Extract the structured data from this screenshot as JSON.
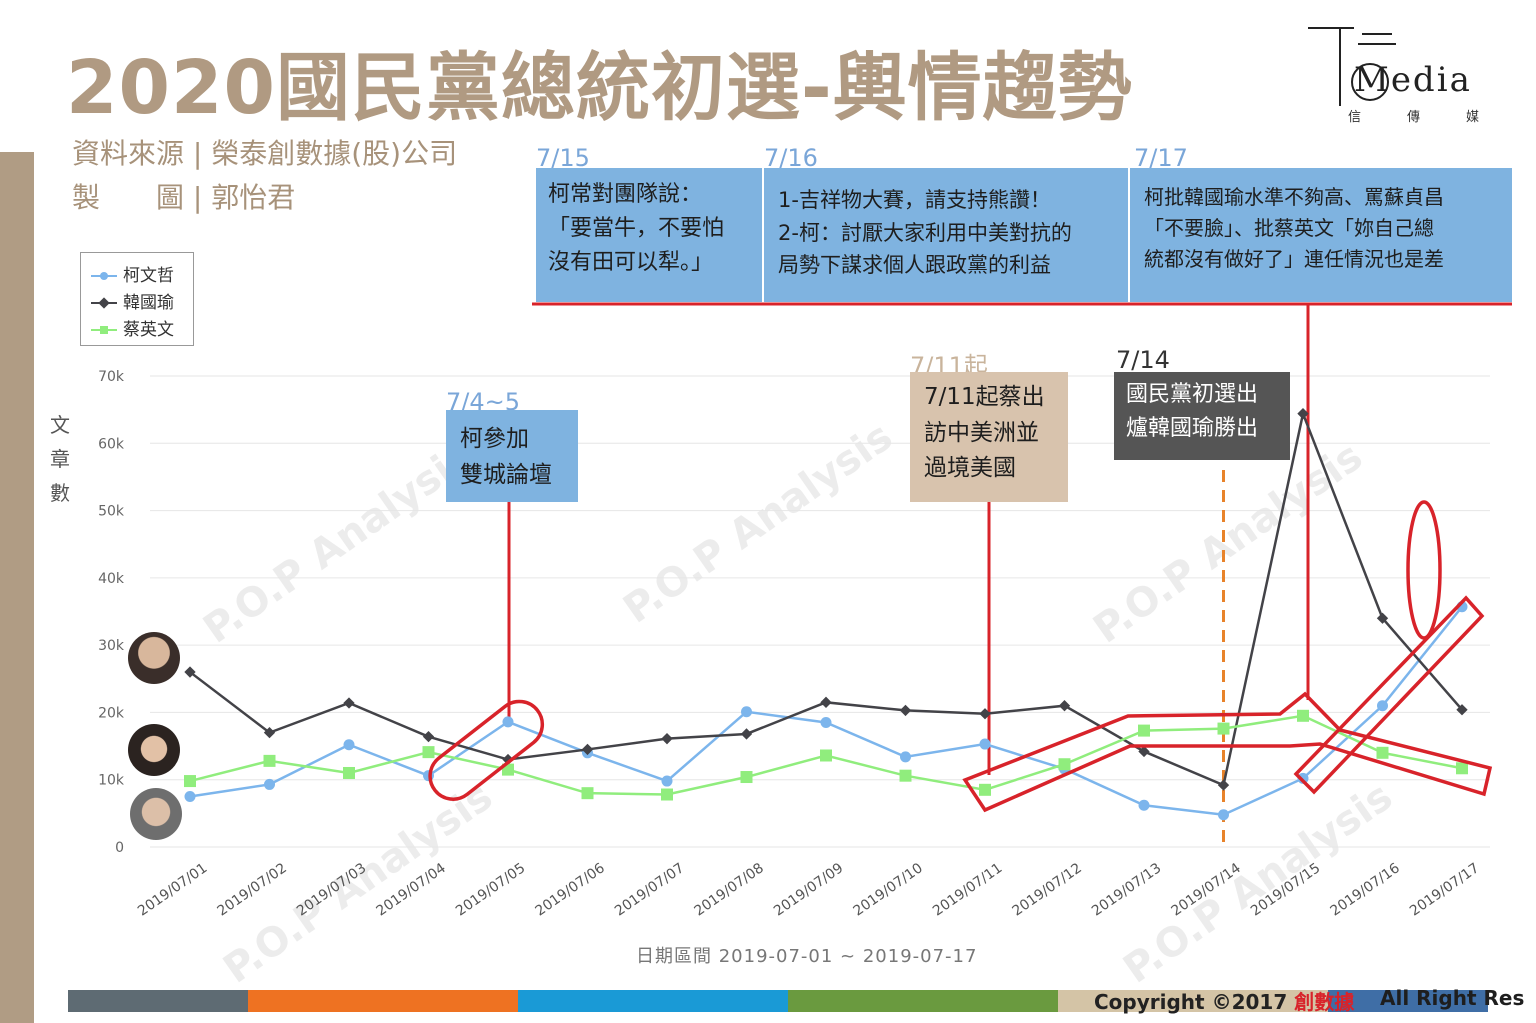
{
  "header": {
    "title": "2020國民黨總統初選-輿情趨勢",
    "source": "資料來源 | 榮泰創數據(股)公司",
    "author": "製　　圖 | 郭怡君"
  },
  "logo": {
    "brand": "Media",
    "sub": "信傳媒"
  },
  "watermark": "P.O.P Analysis",
  "annotations": {
    "d715": {
      "date": "7/15",
      "lines": [
        "柯常對團隊說：",
        "「要當牛，不要怕",
        "沒有田可以犁。」"
      ]
    },
    "d716": {
      "date": "7/16",
      "lines": [
        "1-吉祥物大賽，請支持熊讚！",
        "2-柯：討厭大家利用中美對抗的",
        "局勢下謀求個人跟政黨的利益"
      ]
    },
    "d717": {
      "date": "7/17",
      "lines": [
        "柯批韓國瑜水準不夠高、罵蘇貞昌",
        "「不要臉」、批蔡英文「妳自己總",
        "統都沒有做好了」連任情況也是差"
      ]
    },
    "d74": {
      "date": "7/4~5",
      "lines": [
        "柯參加",
        "雙城論壇"
      ]
    },
    "d711": {
      "date": "7/11起",
      "lines": [
        "7/11起蔡出",
        "訪中美洲並",
        "過境美國"
      ]
    },
    "d714": {
      "date": "7/14",
      "lines": [
        "國民黨初選出",
        "爐韓國瑜勝出"
      ]
    }
  },
  "footer": {
    "copyright": "Copyright ©2017 ",
    "copyright_brand": "創數據",
    "rights": "All Right Res",
    "colors": [
      "#5e6b73",
      "#ee7222",
      "#1a9ad6",
      "#6a9a3f",
      "#d4c4a6",
      "#3f6ea6"
    ]
  },
  "chart_data": {
    "type": "line",
    "ylabel": "文章數",
    "xlabel": "日期區間 2019-07-01 ~ 2019-07-17",
    "ylim": [
      0,
      70000
    ],
    "yticks": [
      "0",
      "10k",
      "20k",
      "30k",
      "40k",
      "50k",
      "60k",
      "70k"
    ],
    "grid": true,
    "legend_position": "top-left",
    "x": [
      "2019/07/01",
      "2019/07/02",
      "2019/07/03",
      "2019/07/04",
      "2019/07/05",
      "2019/07/06",
      "2019/07/07",
      "2019/07/08",
      "2019/07/09",
      "2019/07/10",
      "2019/07/11",
      "2019/07/12",
      "2019/07/13",
      "2019/07/14",
      "2019/07/15",
      "2019/07/16",
      "2019/07/17"
    ],
    "series": [
      {
        "name": "柯文哲",
        "color": "#7cb5ec",
        "values": [
          7500,
          9300,
          15200,
          10600,
          18600,
          14000,
          9800,
          20100,
          18500,
          13400,
          15300,
          11600,
          6200,
          4800,
          10200,
          21000,
          35700
        ]
      },
      {
        "name": "韓國瑜",
        "color": "#434348",
        "values": [
          26000,
          17000,
          21400,
          16400,
          13000,
          14500,
          16100,
          16800,
          21500,
          20300,
          19800,
          21000,
          14200,
          9200,
          64400,
          34000,
          20400
        ]
      },
      {
        "name": "蔡英文",
        "color": "#90ed7d",
        "values": [
          9800,
          12800,
          11000,
          14100,
          11500,
          8000,
          7800,
          10400,
          13600,
          10600,
          8500,
          12300,
          17300,
          17600,
          19500,
          14000,
          11700
        ]
      }
    ]
  }
}
